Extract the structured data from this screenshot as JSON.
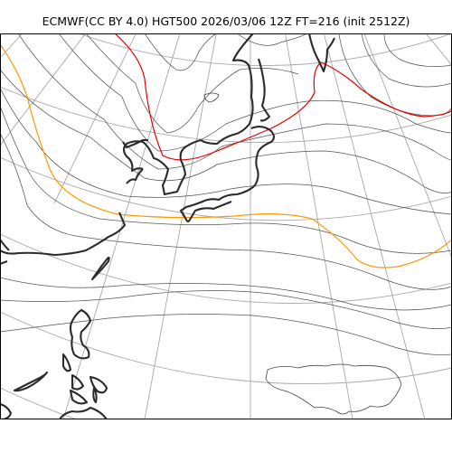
{
  "header": {
    "title": "ECMWF(CC BY 4.0) HGT500 2026/03/06 12Z FT=216 (init 2512Z)"
  },
  "map": {
    "variable": "HGT500",
    "colors": {
      "contour": "#555555",
      "highlight_contour_orange": "#ff9900",
      "highlight_contour_red": "#e60000",
      "coastline": "#2b2b2b",
      "graticule": "#a8a8a8"
    }
  }
}
